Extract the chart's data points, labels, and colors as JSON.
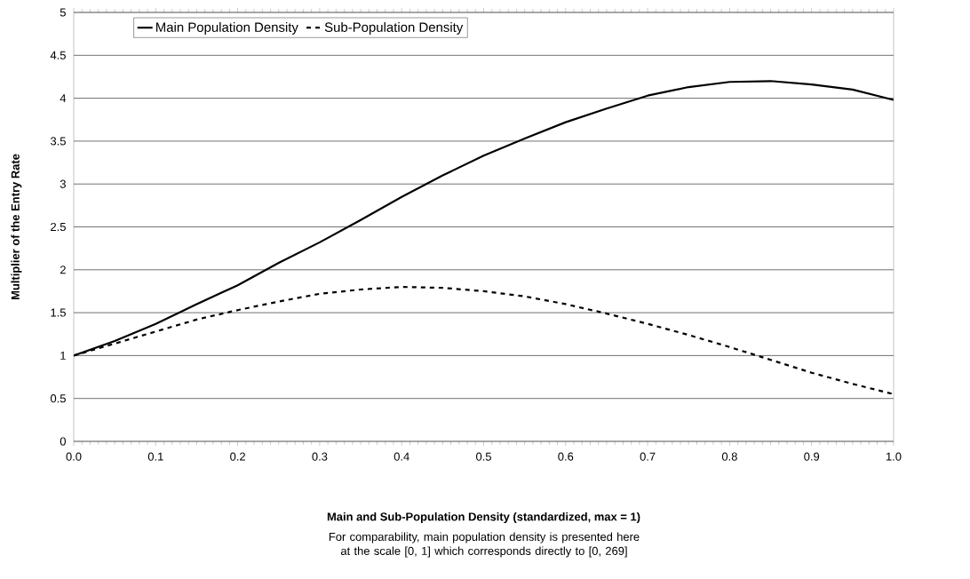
{
  "chart_data": {
    "type": "line",
    "xlabel": "Main and Sub-Population Density (standardized, max = 1)",
    "ylabel": "Multiplier of the Entry Rate",
    "annotations": [
      "For comparability, main population density is presented here at the scale [0, 1] which corresponds directly to [0, 269]"
    ],
    "x": [
      0,
      0.05,
      0.1,
      0.15,
      0.2,
      0.25,
      0.3,
      0.35,
      0.4,
      0.45,
      0.5,
      0.55,
      0.6,
      0.65,
      0.7,
      0.75,
      0.8,
      0.85,
      0.9,
      0.95,
      1.0
    ],
    "series": [
      {
        "name": "Main Population Density",
        "color": "#000000",
        "line_style": "solid",
        "values": [
          1.0,
          1.17,
          1.37,
          1.6,
          1.82,
          2.08,
          2.32,
          2.58,
          2.85,
          3.1,
          3.33,
          3.53,
          3.72,
          3.88,
          4.03,
          4.13,
          4.19,
          4.2,
          4.16,
          4.1,
          3.98
        ]
      },
      {
        "name": "Sub-Population Density",
        "color": "#000000",
        "line_style": "dashed",
        "values": [
          1.0,
          1.14,
          1.28,
          1.42,
          1.53,
          1.63,
          1.72,
          1.77,
          1.8,
          1.79,
          1.75,
          1.69,
          1.6,
          1.49,
          1.37,
          1.24,
          1.1,
          0.95,
          0.8,
          0.67,
          0.55
        ]
      }
    ],
    "xlim": [
      0,
      1
    ],
    "xticks": [
      {
        "value": 0,
        "label": "0.0"
      },
      0.1,
      0.2,
      0.3,
      0.4,
      0.5,
      0.6,
      0.7,
      0.8,
      0.9,
      {
        "value": 1,
        "label": "1.0"
      }
    ],
    "ylim": [
      0,
      5
    ],
    "yticks": [
      0,
      0.5,
      1,
      1.5,
      2,
      2.5,
      3,
      3.5,
      4,
      4.5,
      5
    ],
    "grid": "y",
    "legend": "top left",
    "marker": "none"
  }
}
